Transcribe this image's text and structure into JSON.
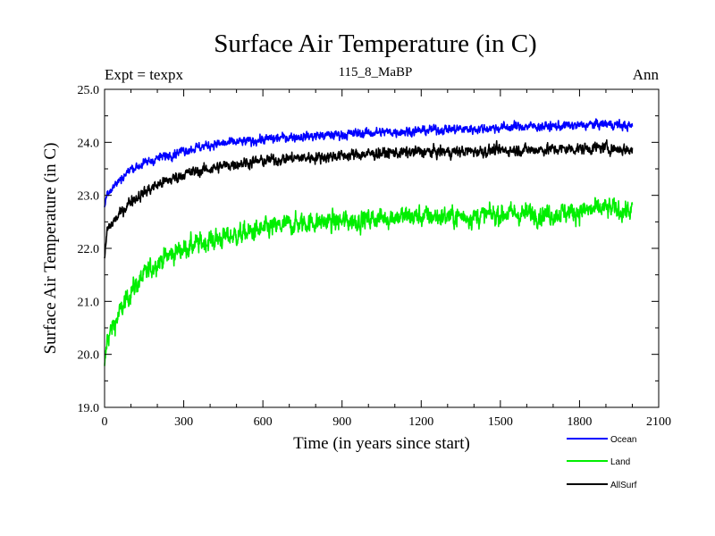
{
  "chart_data": {
    "type": "line",
    "title": "Surface Air Temperature (in C)",
    "subtitle": "115_8_MaBP",
    "header_left": "Expt = texpx",
    "header_right": "Ann",
    "xlabel": "Time (in years since start)",
    "ylabel": "Surface Air Temperature (in C)",
    "xlim": [
      0,
      2100
    ],
    "ylim": [
      19.0,
      25.0
    ],
    "x_ticks": [
      0,
      300,
      600,
      900,
      1200,
      1500,
      1800,
      2100
    ],
    "x_tick_labels": [
      "0",
      "300",
      "600",
      "900",
      "1200",
      "1500",
      "1800",
      "2100"
    ],
    "y_ticks": [
      19.0,
      20.0,
      21.0,
      22.0,
      23.0,
      24.0,
      25.0
    ],
    "y_tick_labels": [
      "19.0",
      "20.0",
      "21.0",
      "22.0",
      "23.0",
      "24.0",
      "25.0"
    ],
    "x_range": [
      0,
      2000
    ],
    "series": [
      {
        "name": "Ocean",
        "color": "#0000ff",
        "noise": 0.1,
        "x": [
          0,
          10,
          50,
          100,
          200,
          300,
          400,
          500,
          600,
          700,
          800,
          900,
          1000,
          1100,
          1200,
          1300,
          1400,
          1500,
          1600,
          1700,
          1800,
          1900,
          2000
        ],
        "values": [
          22.8,
          23.05,
          23.25,
          23.5,
          23.7,
          23.85,
          23.95,
          24.0,
          24.05,
          24.1,
          24.12,
          24.15,
          24.18,
          24.2,
          24.22,
          24.25,
          24.25,
          24.28,
          24.3,
          24.3,
          24.32,
          24.35,
          24.3
        ]
      },
      {
        "name": "Land",
        "color": "#00ee00",
        "noise": 0.22,
        "x": [
          0,
          10,
          50,
          100,
          200,
          300,
          400,
          500,
          600,
          700,
          800,
          900,
          1000,
          1100,
          1200,
          1300,
          1400,
          1500,
          1600,
          1700,
          1800,
          1900,
          2000
        ],
        "values": [
          19.7,
          20.3,
          20.7,
          21.2,
          21.75,
          22.0,
          22.15,
          22.25,
          22.35,
          22.45,
          22.5,
          22.5,
          22.55,
          22.6,
          22.6,
          22.6,
          22.6,
          22.65,
          22.65,
          22.65,
          22.7,
          22.75,
          22.7
        ]
      },
      {
        "name": "AllSurf",
        "color": "#000000",
        "noise": 0.12,
        "x": [
          0,
          10,
          50,
          100,
          200,
          300,
          400,
          500,
          600,
          700,
          800,
          900,
          1000,
          1100,
          1200,
          1300,
          1400,
          1500,
          1600,
          1700,
          1800,
          1900,
          2000
        ],
        "values": [
          21.8,
          22.35,
          22.6,
          22.9,
          23.2,
          23.4,
          23.5,
          23.6,
          23.65,
          23.7,
          23.72,
          23.75,
          23.78,
          23.8,
          23.82,
          23.82,
          23.83,
          23.85,
          23.86,
          23.87,
          23.88,
          23.9,
          23.85
        ]
      }
    ],
    "legend": [
      {
        "label": "Ocean",
        "color": "#0000ff"
      },
      {
        "label": "Land",
        "color": "#00ee00"
      },
      {
        "label": "AllSurf",
        "color": "#000000"
      }
    ],
    "legend_position": "bottom-right"
  }
}
